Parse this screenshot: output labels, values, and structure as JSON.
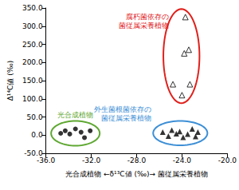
{
  "chart_data": {
    "type": "scatter",
    "xlabel": "光合成植物 ←δ¹³C値 (‰)→ 菌従属栄養植物",
    "ylabel": "Δ¹⁴C値 (‰)",
    "xlim": [
      -36,
      -20
    ],
    "xticks": [
      {
        "value": -36,
        "label": "-36.0"
      },
      {
        "value": -32,
        "label": "-32.0"
      },
      {
        "value": -28,
        "label": "-28.0"
      },
      {
        "value": -24,
        "label": "-24.0"
      },
      {
        "value": -20,
        "label": "-20.0"
      }
    ],
    "ylim": [
      -50,
      350
    ],
    "yticks": [
      {
        "value": -50,
        "label": "-50.0"
      },
      {
        "value": 0,
        "label": "0.0"
      },
      {
        "value": 50,
        "label": "50.0"
      },
      {
        "value": 100,
        "label": "100.0"
      },
      {
        "value": 150,
        "label": "150.0"
      },
      {
        "value": 200,
        "label": "200.0"
      },
      {
        "value": 250,
        "label": "250.0"
      },
      {
        "value": 300,
        "label": "300.0"
      },
      {
        "value": 350,
        "label": "350.0"
      }
    ],
    "grid": false,
    "series": [
      {
        "name": "光合成植物",
        "color": "#5fa832",
        "marker": "circle",
        "x": [
          -34.7,
          -34.3,
          -33.9,
          -33.4,
          -32.9,
          -32.6,
          -32.1
        ],
        "values": [
          5,
          12,
          3,
          17,
          8,
          -7,
          12
        ]
      },
      {
        "name": "外生菌根菌依存の\n菌従属栄養植物",
        "color": "#3d8fd6",
        "marker": "triangle",
        "x": [
          -25.7,
          -25.2,
          -24.9,
          -24.5,
          -24.2,
          -23.9,
          -23.5,
          -23.1,
          -22.8,
          -22.6
        ],
        "values": [
          8,
          -3,
          14,
          4,
          10,
          -6,
          3,
          17,
          -4,
          8
        ]
      },
      {
        "name": "腐朽菌依存の\n菌従属栄養植物",
        "color": "#e0201b",
        "marker": "triangle-open",
        "x": [
          -23.7,
          -23.4,
          -23.8,
          -24.8,
          -23.3,
          -24.0
        ],
        "values": [
          325,
          235,
          225,
          140,
          140,
          110
        ]
      }
    ]
  }
}
